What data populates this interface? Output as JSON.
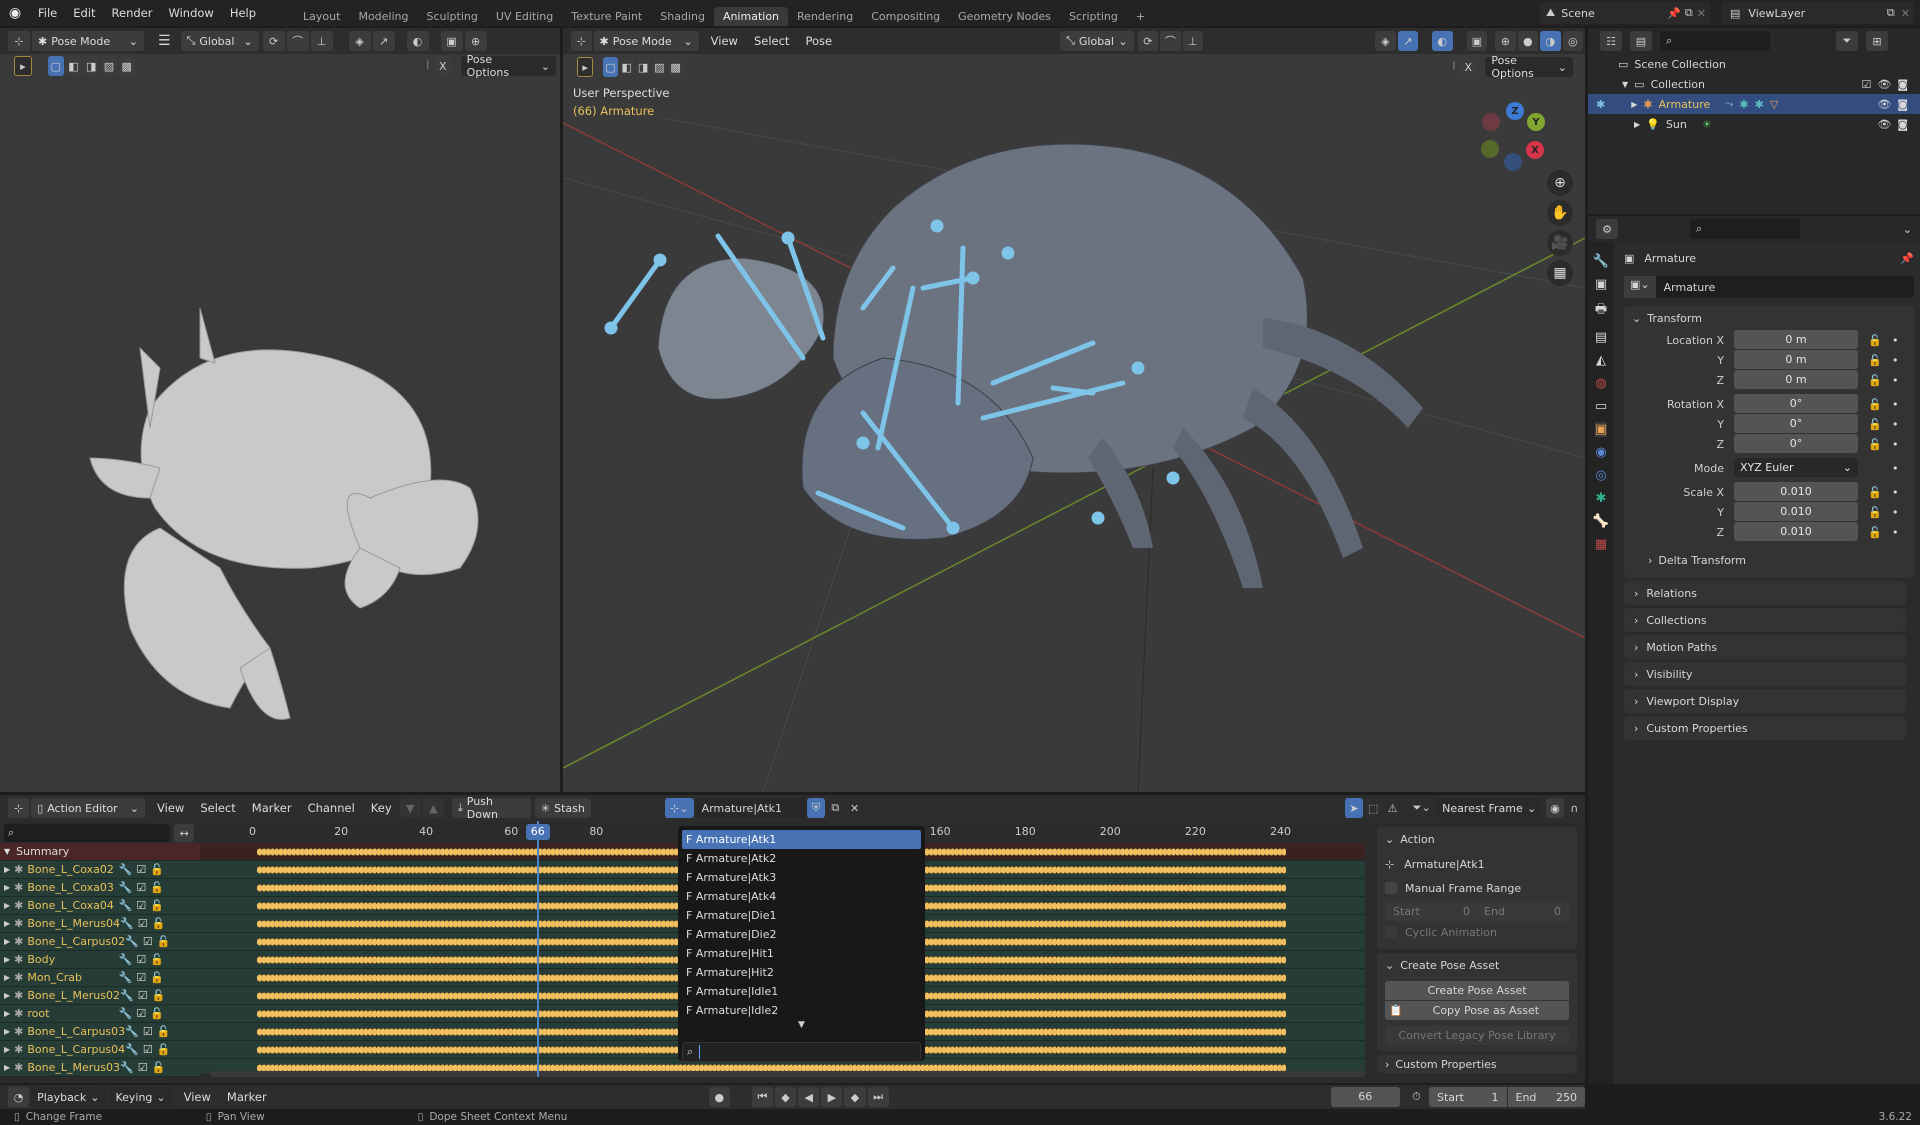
{
  "topbar": {
    "menus": [
      "File",
      "Edit",
      "Render",
      "Window",
      "Help"
    ],
    "workspaces": [
      "Layout",
      "Modeling",
      "Sculpting",
      "UV Editing",
      "Texture Paint",
      "Shading",
      "Animation",
      "Rendering",
      "Compositing",
      "Geometry Nodes",
      "Scripting"
    ],
    "active_workspace": "Animation",
    "add_tab": "+",
    "scene": "Scene",
    "view_layer": "ViewLayer"
  },
  "left_view": {
    "mode": "Pose Mode",
    "orientation": "Global",
    "pose_options": "Pose Options",
    "mirror_x": "X"
  },
  "main_view": {
    "mode": "Pose Mode",
    "menus": [
      "View",
      "Select",
      "Pose"
    ],
    "orientation": "Global",
    "pose_options": "Pose Options",
    "mirror_x": "X",
    "perspective": "User Perspective",
    "object_info": "(66) Armature",
    "gizmo": {
      "x": "X",
      "y": "Y",
      "z": "Z"
    }
  },
  "outliner": {
    "scene_collection": "Scene Collection",
    "collection": "Collection",
    "items": [
      {
        "name": "Armature",
        "selected": true
      },
      {
        "name": "Sun",
        "selected": false
      }
    ]
  },
  "properties": {
    "object_name": "Armature",
    "data_name": "Armature",
    "transform": {
      "title": "Transform",
      "location_label": "Location X",
      "location": [
        "0 m",
        "0 m",
        "0 m"
      ],
      "rotation_label": "Rotation X",
      "rotation": [
        "0°",
        "0°",
        "0°"
      ],
      "mode_label": "Mode",
      "mode": "XYZ Euler",
      "scale_label": "Scale X",
      "scale": [
        "0.010",
        "0.010",
        "0.010"
      ],
      "axis_y": "Y",
      "axis_z": "Z",
      "delta": "Delta Transform"
    },
    "sections": [
      "Relations",
      "Collections",
      "Motion Paths",
      "Visibility",
      "Viewport Display",
      "Custom Properties"
    ]
  },
  "dopesheet": {
    "editor": "Action Editor",
    "menus": [
      "View",
      "Select",
      "Marker",
      "Channel",
      "Key"
    ],
    "push_down": "Push Down",
    "stash": "Stash",
    "action": "Armature|Atk1",
    "snap": "Nearest Frame",
    "ruler": [
      "0",
      "20",
      "40",
      "60",
      "80",
      "160",
      "180",
      "200",
      "220",
      "240"
    ],
    "current_frame": "66",
    "summary": "Summary",
    "channels": [
      "Bone_L_Coxa02",
      "Bone_L_Coxa03",
      "Bone_L_Coxa04",
      "Bone_L_Merus04",
      "Bone_L_Carpus02",
      "Body",
      "Mon_Crab",
      "Bone_L_Merus02",
      "root",
      "Bone_L_Carpus03",
      "Bone_L_Carpus04",
      "Bone_L_Merus03"
    ],
    "action_dropdown": [
      "F Armature|Atk1",
      "F Armature|Atk2",
      "F Armature|Atk3",
      "F Armature|Atk4",
      "F Armature|Die1",
      "F Armature|Die2",
      "F Armature|Hit1",
      "F Armature|Hit2",
      "F Armature|Idle1",
      "F Armature|Idle2"
    ],
    "sidebar": {
      "action_title": "Action",
      "action_name": "Armature|Atk1",
      "manual_range": "Manual Frame Range",
      "start_label": "Start",
      "start": "0",
      "end_label": "End",
      "end": "0",
      "cyclic": "Cyclic Animation",
      "pose_asset_title": "Create Pose Asset",
      "create_pose_asset": "Create Pose Asset",
      "copy_pose": "Copy Pose as Asset",
      "convert_legacy": "Convert Legacy Pose Library",
      "custom_props": "Custom Properties"
    }
  },
  "timeline": {
    "menus": [
      "Playback",
      "Keying",
      "View",
      "Marker"
    ],
    "frame": "66",
    "start_label": "Start",
    "start": "1",
    "end_label": "End",
    "end": "250"
  },
  "statusbar": {
    "items": [
      "Change Frame",
      "Pan View",
      "Dope Sheet Context Menu"
    ],
    "version": "3.6.22"
  },
  "colors": {
    "accent": "#4772b3",
    "keyframe": "#f0c060",
    "bone": "#7ec3e8",
    "channel_bg": "#263c36",
    "summary_bg": "#4a2626"
  }
}
